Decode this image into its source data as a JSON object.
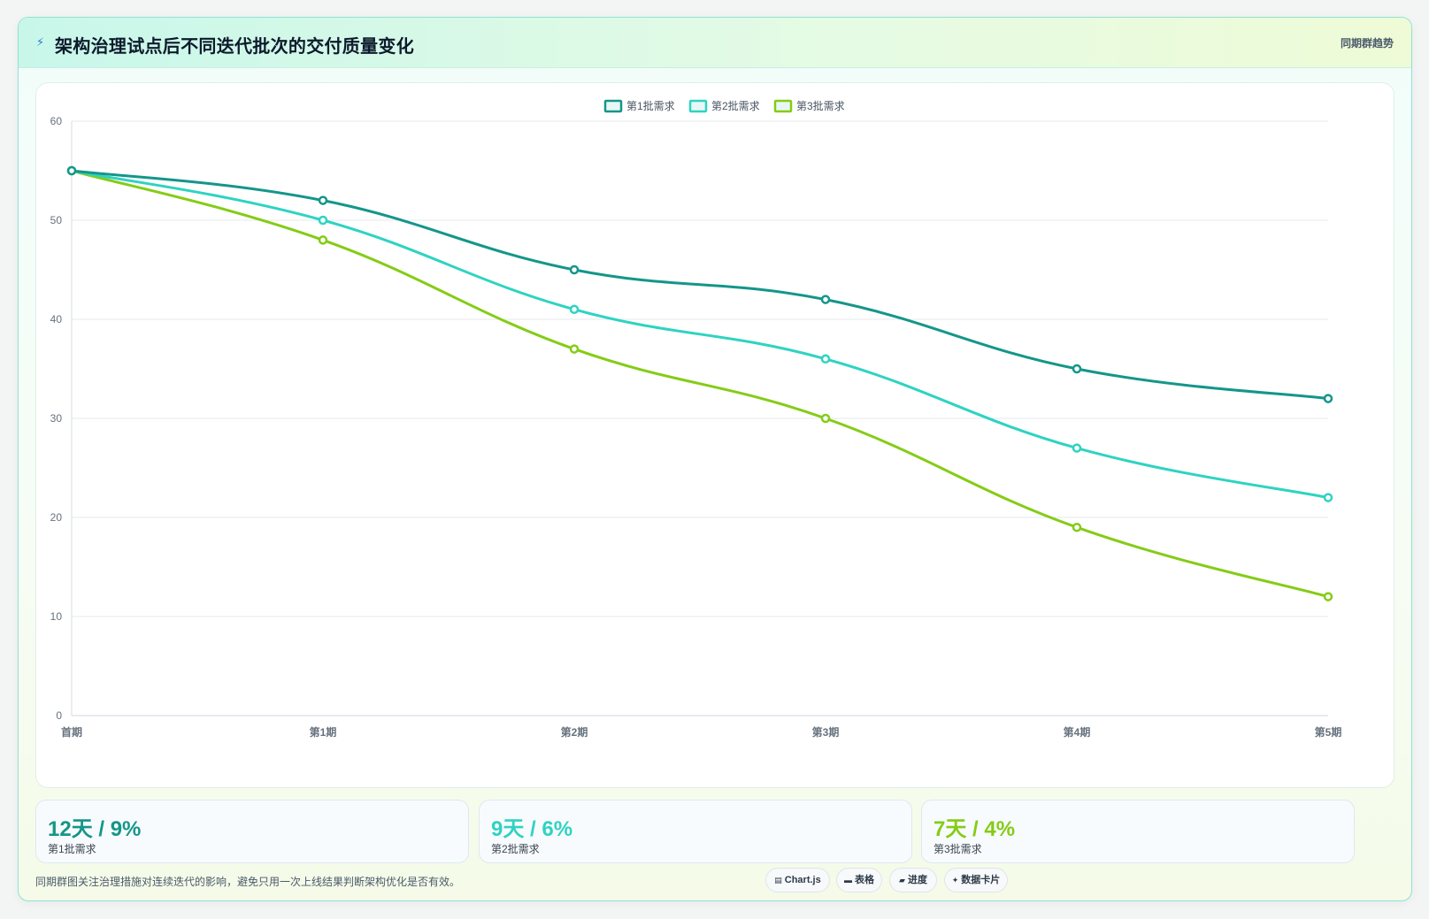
{
  "header": {
    "icon": "bolt-icon",
    "title": "架构治理试点后不同迭代批次的交付质量变化",
    "badge": "同期群趋势"
  },
  "colors": {
    "series1": "#14968a",
    "series2": "#2ed3c2",
    "series3": "#84cc16"
  },
  "chart_data": {
    "type": "line",
    "x": [
      "首期",
      "第1期",
      "第2期",
      "第3期",
      "第4期",
      "第5期"
    ],
    "ylim": [
      0,
      60
    ],
    "yticks": [
      0,
      10,
      20,
      30,
      40,
      50,
      60
    ],
    "grid": true,
    "legend_position": "top-center",
    "series": [
      {
        "name": "第1批需求",
        "values": [
          55,
          52,
          45,
          42,
          35,
          32
        ]
      },
      {
        "name": "第2批需求",
        "values": [
          55,
          50,
          41,
          36,
          27,
          22
        ]
      },
      {
        "name": "第3批需求",
        "values": [
          55,
          48,
          37,
          30,
          19,
          12
        ]
      }
    ]
  },
  "stats": [
    {
      "value": "12天 / 9%",
      "label": "第1批需求"
    },
    {
      "value": "9天 / 6%",
      "label": "第2批需求"
    },
    {
      "value": "7天 / 4%",
      "label": "第3批需求"
    }
  ],
  "footer": {
    "note": "同期群图关注治理措施对连续迭代的影响，避免只用一次上线结果判断架构优化是否有效。",
    "chips": [
      {
        "icon": "chart-icon",
        "glyph": "▤",
        "label": "Chart.js"
      },
      {
        "icon": "table-icon",
        "glyph": "▬",
        "label": "表格"
      },
      {
        "icon": "progress-icon",
        "glyph": "▰",
        "label": "进度"
      },
      {
        "icon": "sparkle-icon",
        "glyph": "✦",
        "label": "数据卡片"
      }
    ]
  }
}
